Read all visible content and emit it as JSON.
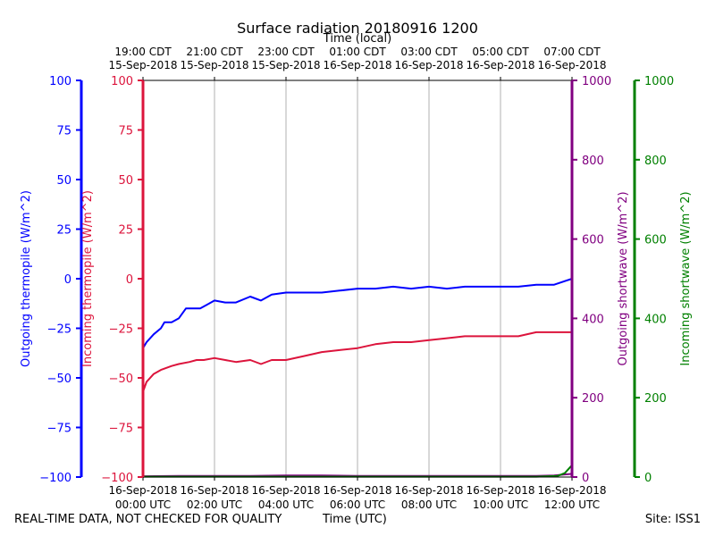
{
  "chart_data": {
    "type": "line",
    "title": "Surface radiation 20180916 1200",
    "xlabel_top": "Time (local)",
    "xlabel_bottom": "Time (UTC)",
    "top_ticks": [
      {
        "line1": "19:00 CDT",
        "line2": "15-Sep-2018"
      },
      {
        "line1": "21:00 CDT",
        "line2": "15-Sep-2018"
      },
      {
        "line1": "23:00 CDT",
        "line2": "15-Sep-2018"
      },
      {
        "line1": "01:00 CDT",
        "line2": "16-Sep-2018"
      },
      {
        "line1": "03:00 CDT",
        "line2": "16-Sep-2018"
      },
      {
        "line1": "05:00 CDT",
        "line2": "16-Sep-2018"
      },
      {
        "line1": "07:00 CDT",
        "line2": "16-Sep-2018"
      }
    ],
    "bottom_ticks": [
      {
        "line1": "16-Sep-2018",
        "line2": "00:00 UTC"
      },
      {
        "line1": "16-Sep-2018",
        "line2": "02:00 UTC"
      },
      {
        "line1": "16-Sep-2018",
        "line2": "04:00 UTC"
      },
      {
        "line1": "16-Sep-2018",
        "line2": "06:00 UTC"
      },
      {
        "line1": "16-Sep-2018",
        "line2": "08:00 UTC"
      },
      {
        "line1": "16-Sep-2018",
        "line2": "10:00 UTC"
      },
      {
        "line1": "16-Sep-2018",
        "line2": "12:00 UTC"
      }
    ],
    "x_range_hours_utc": [
      0,
      12
    ],
    "grid": "vertical",
    "axes": {
      "outgoing_thermopile": {
        "label": "Outgoing thermopile (W/m^2)",
        "color": "#0000ff",
        "ylim": [
          -100,
          100
        ],
        "ticks": [
          100,
          75,
          50,
          25,
          0,
          -25,
          -50,
          -75,
          -100
        ]
      },
      "incoming_thermopile": {
        "label": "Incoming thermopile (W/m^2)",
        "color": "#dc143c",
        "ylim": [
          -100,
          100
        ],
        "ticks": [
          100,
          75,
          50,
          25,
          0,
          -25,
          -50,
          -75,
          -100
        ]
      },
      "outgoing_shortwave": {
        "label": "Outgoing shortwave (W/m^2)",
        "color": "#800080",
        "ylim": [
          0,
          1000
        ],
        "ticks": [
          1000,
          800,
          600,
          400,
          200,
          0
        ]
      },
      "incoming_shortwave": {
        "label": "Incoming shortwave (W/m^2)",
        "color": "#008000",
        "ylim": [
          0,
          1000
        ],
        "ticks": [
          1000,
          800,
          600,
          400,
          200,
          0
        ]
      }
    },
    "series": [
      {
        "key": "outgoing_thermopile",
        "color": "#0000ff",
        "x": [
          0,
          0.1,
          0.3,
          0.5,
          0.6,
          0.8,
          1.0,
          1.2,
          1.4,
          1.6,
          1.8,
          2.0,
          2.3,
          2.6,
          3.0,
          3.3,
          3.6,
          4.0,
          4.5,
          5.0,
          5.5,
          6.0,
          6.5,
          7.0,
          7.5,
          8.0,
          8.5,
          9.0,
          9.5,
          10.0,
          10.5,
          11.0,
          11.5,
          12.0
        ],
        "y": [
          -35,
          -32,
          -28,
          -25,
          -22,
          -22,
          -20,
          -15,
          -15,
          -15,
          -13,
          -11,
          -12,
          -12,
          -9,
          -11,
          -8,
          -7,
          -7,
          -7,
          -6,
          -5,
          -5,
          -4,
          -5,
          -4,
          -5,
          -4,
          -4,
          -4,
          -4,
          -3,
          -3,
          0
        ]
      },
      {
        "key": "incoming_thermopile",
        "color": "#dc143c",
        "x": [
          0,
          0.1,
          0.3,
          0.5,
          0.8,
          1.0,
          1.3,
          1.5,
          1.7,
          2.0,
          2.3,
          2.6,
          3.0,
          3.3,
          3.6,
          4.0,
          4.5,
          5.0,
          5.5,
          6.0,
          6.5,
          7.0,
          7.5,
          8.0,
          8.5,
          9.0,
          9.5,
          10.0,
          10.5,
          11.0,
          11.5,
          12.0
        ],
        "y": [
          -57,
          -52,
          -48,
          -46,
          -44,
          -43,
          -42,
          -41,
          -41,
          -40,
          -41,
          -42,
          -41,
          -43,
          -41,
          -41,
          -39,
          -37,
          -36,
          -35,
          -33,
          -32,
          -32,
          -31,
          -30,
          -29,
          -29,
          -29,
          -29,
          -27,
          -27,
          -27
        ]
      },
      {
        "key": "outgoing_shortwave",
        "color": "#800080",
        "x": [
          0,
          1,
          2,
          3,
          4,
          5,
          6,
          7,
          8,
          9,
          10,
          11,
          11.5,
          12.0
        ],
        "y": [
          2,
          3,
          3,
          3,
          4,
          4,
          3,
          3,
          3,
          3,
          3,
          3,
          4,
          8
        ]
      },
      {
        "key": "incoming_shortwave",
        "color": "#008000",
        "x": [
          0,
          1,
          2,
          3,
          4,
          5,
          6,
          7,
          8,
          9,
          10,
          11,
          11.6,
          11.8,
          12.0
        ],
        "y": [
          1,
          1,
          1,
          1,
          1,
          1,
          1,
          1,
          1,
          1,
          1,
          1,
          3,
          10,
          30
        ]
      }
    ]
  },
  "footer": {
    "left": "REAL-TIME DATA, NOT CHECKED FOR QUALITY",
    "center": "Time (UTC)",
    "right": "Site: ISS1"
  }
}
